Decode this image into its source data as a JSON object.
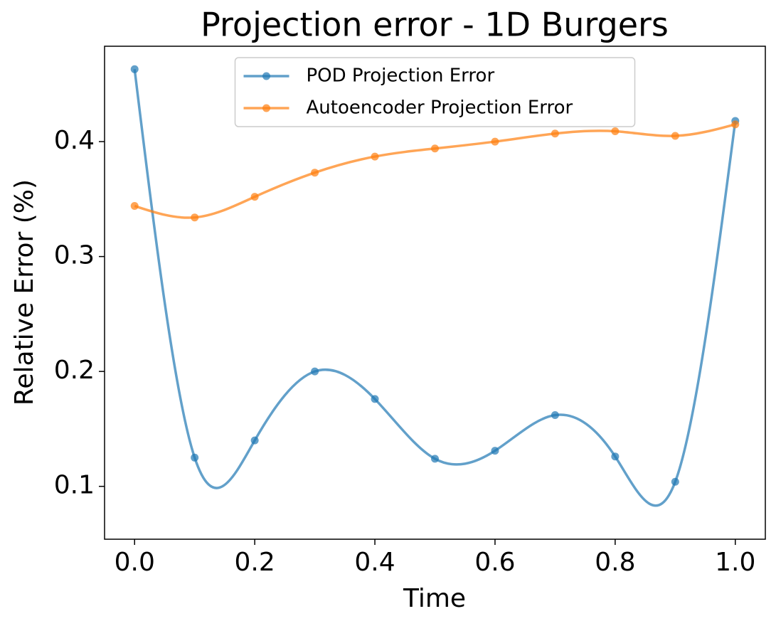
{
  "chart_data": {
    "type": "line",
    "title": "Projection error - 1D Burgers",
    "xlabel": "Time",
    "ylabel": "Relative Error (%)",
    "x": [
      0,
      0.1,
      0.2,
      0.3,
      0.4,
      0.5,
      0.6,
      0.7,
      0.8,
      0.9,
      1.0
    ],
    "series": [
      {
        "name": "POD Projection Error",
        "color": "#1f77b4",
        "values": [
          0.463,
          0.125,
          0.14,
          0.2,
          0.176,
          0.124,
          0.131,
          0.162,
          0.126,
          0.104,
          0.418
        ]
      },
      {
        "name": "Autoencoder Projection Error",
        "color": "#ff7f0e",
        "values": [
          0.344,
          0.334,
          0.352,
          0.373,
          0.387,
          0.394,
          0.4,
          0.407,
          0.409,
          0.405,
          0.415
        ]
      }
    ],
    "xlim": [
      -0.05,
      1.05
    ],
    "ylim": [
      0.054,
      0.483
    ],
    "xticks": [
      {
        "value": 0,
        "label": "0.0"
      },
      0.2,
      0.4,
      0.6,
      0.8,
      {
        "value": 1.0,
        "label": "1.0"
      }
    ],
    "yticks": [
      0.1,
      0.2,
      0.3,
      0.4
    ],
    "legend": "upper center",
    "smooth": true,
    "grid": false
  }
}
